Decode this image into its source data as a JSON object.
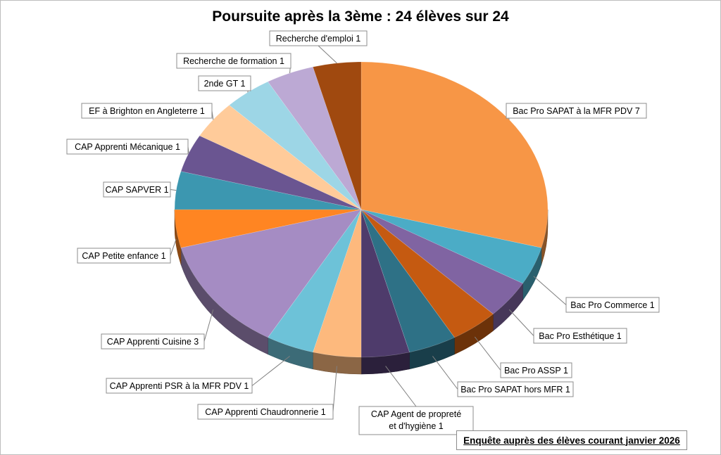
{
  "footnote": "Enquête auprès des élèves courant janvier 2026",
  "chart_data": {
    "type": "pie",
    "title": "Poursuite après la 3ème : 24 élèves sur 24",
    "total": 24,
    "slices": [
      {
        "label": "Bac Pro SAPAT à la MFR PDV",
        "value": 7,
        "color": "#F79646"
      },
      {
        "label": "Bac Pro Commerce",
        "value": 1,
        "color": "#4BACC6"
      },
      {
        "label": "Bac Pro Esthétique",
        "value": 1,
        "color": "#8064A2"
      },
      {
        "label": "Bac Pro ASSP",
        "value": 1,
        "color": "#C55A11"
      },
      {
        "label": "Bac Pro SAPAT hors MFR",
        "value": 1,
        "color": "#2E7186"
      },
      {
        "label": "CAP Agent de propreté et d'hygiène",
        "value": 1,
        "color": "#4E3B6B"
      },
      {
        "label": "CAP Apprenti Chaudronnerie",
        "value": 1,
        "color": "#FDB97D"
      },
      {
        "label": "CAP Apprenti PSR à la MFR PDV",
        "value": 1,
        "color": "#6DC2D8"
      },
      {
        "label": "CAP Apprenti Cuisine",
        "value": 3,
        "color": "#A58CC3"
      },
      {
        "label": "CAP Petite enfance",
        "value": 1,
        "color": "#FF8522"
      },
      {
        "label": "CAP SAPVER",
        "value": 1,
        "color": "#3C97B0"
      },
      {
        "label": "CAP Apprenti Mécanique",
        "value": 1,
        "color": "#6A5591"
      },
      {
        "label": "EF à Brighton en Angleterre",
        "value": 1,
        "color": "#FFCB9A"
      },
      {
        "label": "2nde GT",
        "value": 1,
        "color": "#9DD6E6"
      },
      {
        "label": "Recherche de formation",
        "value": 1,
        "color": "#BCA9D4"
      },
      {
        "label": "Recherche d'emploi",
        "value": 1,
        "color": "#A0490F"
      }
    ],
    "legend": "none"
  }
}
